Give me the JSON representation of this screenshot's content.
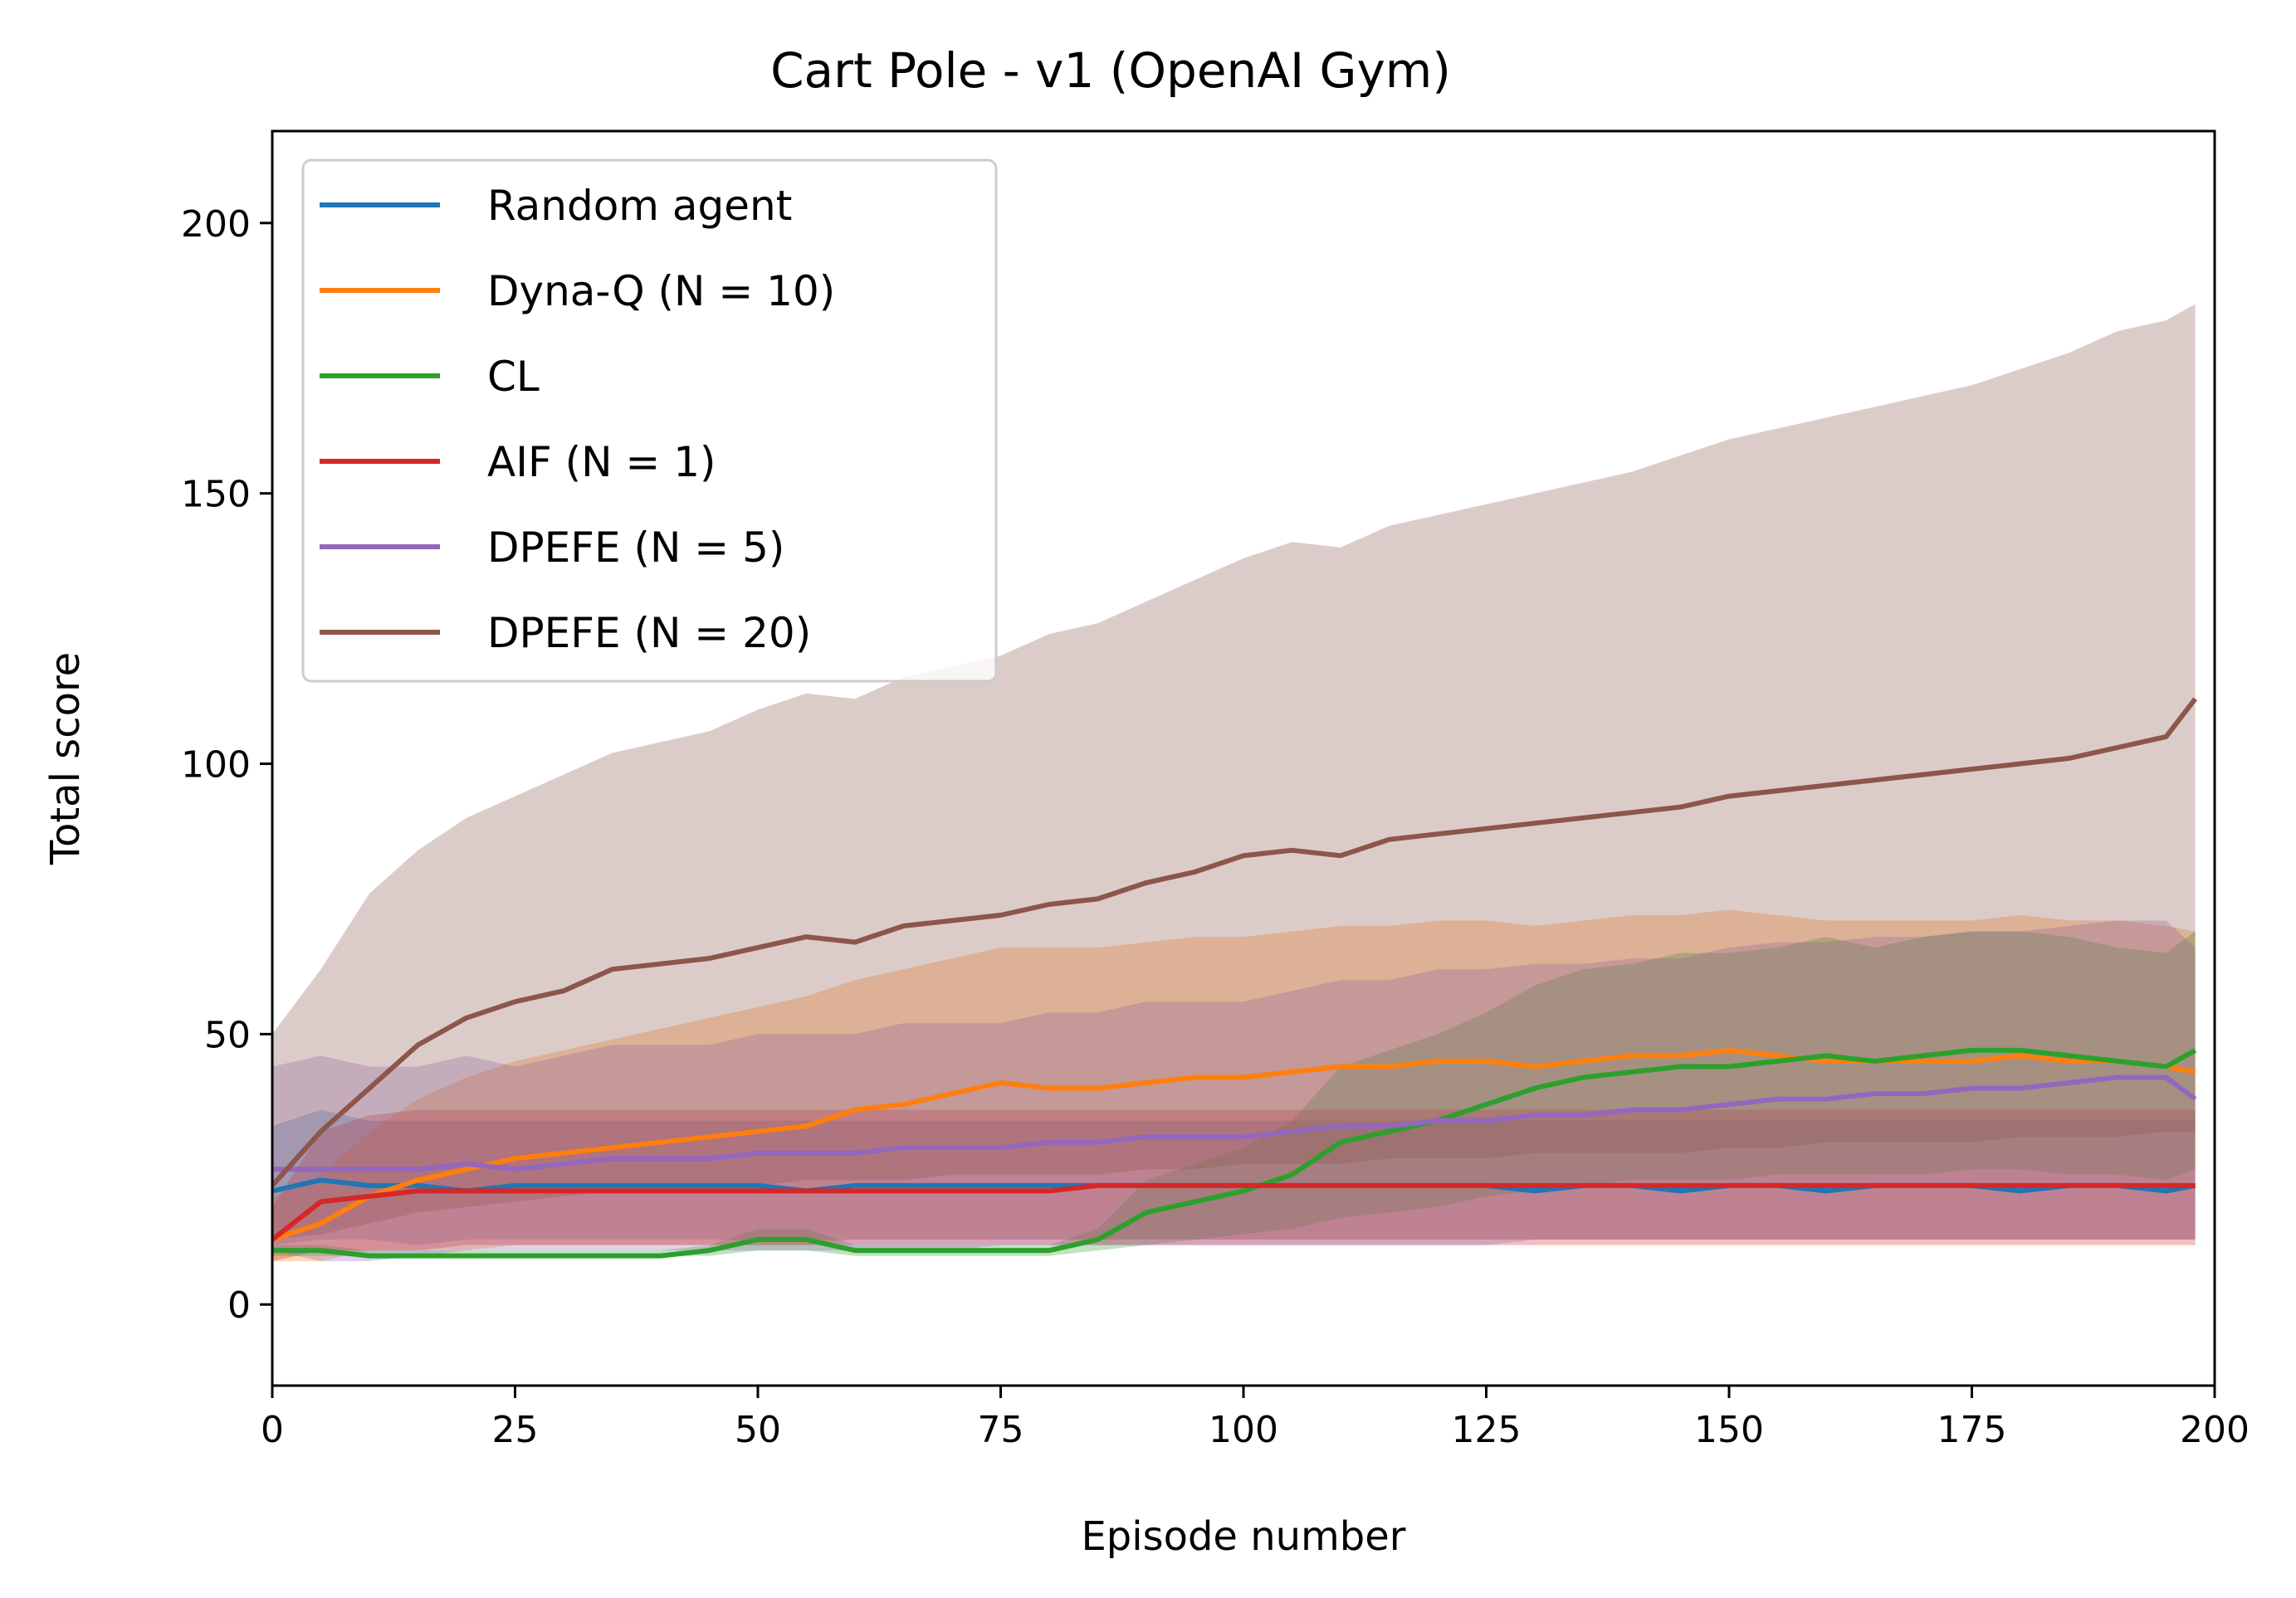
{
  "chart_data": {
    "type": "line",
    "title": "Cart Pole - v1 (OpenAI Gym)",
    "xlabel": "Episode number",
    "ylabel": "Total score",
    "xlim": [
      0,
      200
    ],
    "ylim": [
      -15,
      217
    ],
    "xticks": [
      0,
      25,
      50,
      75,
      100,
      125,
      150,
      175,
      200
    ],
    "yticks": [
      0,
      50,
      100,
      150,
      200
    ],
    "grid": false,
    "legend_position": "top-left",
    "x": [
      0,
      5,
      10,
      15,
      20,
      25,
      30,
      35,
      40,
      45,
      50,
      55,
      60,
      65,
      70,
      75,
      80,
      85,
      90,
      95,
      100,
      105,
      110,
      115,
      120,
      125,
      130,
      135,
      140,
      145,
      150,
      155,
      160,
      165,
      170,
      175,
      180,
      185,
      190,
      195,
      198
    ],
    "series": [
      {
        "name": "Random agent",
        "color": "#1f77b4",
        "values": [
          21,
          23,
          22,
          22,
          21,
          22,
          22,
          22,
          22,
          22,
          22,
          21,
          22,
          22,
          22,
          22,
          22,
          22,
          22,
          22,
          22,
          22,
          22,
          22,
          22,
          22,
          21,
          22,
          22,
          21,
          22,
          22,
          21,
          22,
          22,
          22,
          21,
          22,
          22,
          21,
          22
        ],
        "lower": [
          11,
          12,
          12,
          11,
          12,
          12,
          12,
          12,
          12,
          12,
          12,
          12,
          12,
          12,
          12,
          12,
          12,
          12,
          12,
          12,
          12,
          12,
          12,
          12,
          12,
          12,
          12,
          12,
          12,
          12,
          12,
          12,
          12,
          12,
          12,
          12,
          12,
          12,
          12,
          12,
          12
        ],
        "upper": [
          33,
          36,
          34,
          34,
          34,
          34,
          34,
          34,
          34,
          34,
          34,
          34,
          34,
          34,
          34,
          34,
          34,
          34,
          34,
          34,
          34,
          34,
          34,
          34,
          34,
          34,
          34,
          34,
          34,
          34,
          34,
          34,
          34,
          34,
          34,
          34,
          34,
          34,
          34,
          34,
          34
        ]
      },
      {
        "name": "Dyna-Q (N = 10)",
        "color": "#ff7f0e",
        "values": [
          12,
          15,
          20,
          23,
          25,
          27,
          28,
          29,
          30,
          31,
          32,
          33,
          36,
          37,
          39,
          41,
          40,
          40,
          41,
          42,
          42,
          43,
          44,
          44,
          45,
          45,
          44,
          45,
          46,
          46,
          47,
          46,
          45,
          45,
          45,
          45,
          46,
          45,
          45,
          44,
          43
        ],
        "lower": [
          8,
          8,
          10,
          10,
          10,
          11,
          11,
          11,
          11,
          11,
          11,
          11,
          12,
          12,
          12,
          12,
          12,
          12,
          12,
          12,
          12,
          12,
          12,
          12,
          12,
          12,
          12,
          12,
          12,
          12,
          12,
          12,
          12,
          12,
          12,
          12,
          12,
          12,
          12,
          12,
          12
        ],
        "upper": [
          20,
          24,
          32,
          38,
          42,
          45,
          47,
          49,
          51,
          53,
          55,
          57,
          60,
          62,
          64,
          66,
          66,
          66,
          67,
          68,
          68,
          69,
          70,
          70,
          71,
          71,
          70,
          71,
          72,
          72,
          73,
          72,
          71,
          71,
          71,
          71,
          72,
          71,
          71,
          70,
          69
        ]
      },
      {
        "name": "CL",
        "color": "#2ca02c",
        "values": [
          10,
          10,
          9,
          9,
          9,
          9,
          9,
          9,
          9,
          10,
          12,
          12,
          10,
          10,
          10,
          10,
          10,
          12,
          17,
          19,
          21,
          24,
          30,
          32,
          34,
          37,
          40,
          42,
          43,
          44,
          44,
          45,
          46,
          45,
          46,
          47,
          47,
          46,
          45,
          44,
          47
        ],
        "lower": [
          9,
          9,
          9,
          9,
          9,
          9,
          9,
          9,
          9,
          9,
          10,
          10,
          9,
          9,
          9,
          9,
          9,
          10,
          11,
          12,
          13,
          14,
          16,
          17,
          18,
          20,
          21,
          22,
          23,
          23,
          23,
          24,
          24,
          24,
          24,
          25,
          25,
          24,
          24,
          23,
          25
        ],
        "upper": [
          11,
          11,
          10,
          10,
          10,
          10,
          10,
          10,
          10,
          11,
          14,
          14,
          11,
          11,
          11,
          11,
          11,
          14,
          23,
          26,
          29,
          34,
          44,
          47,
          50,
          54,
          59,
          62,
          63,
          65,
          65,
          66,
          68,
          66,
          68,
          69,
          69,
          68,
          66,
          65,
          69
        ]
      },
      {
        "name": "AIF (N = 1)",
        "color": "#d62728",
        "values": [
          12,
          19,
          20,
          21,
          21,
          21,
          21,
          21,
          21,
          21,
          21,
          21,
          21,
          21,
          21,
          21,
          21,
          22,
          22,
          22,
          22,
          22,
          22,
          22,
          22,
          22,
          22,
          22,
          22,
          22,
          22,
          22,
          22,
          22,
          22,
          22,
          22,
          22,
          22,
          22,
          22
        ],
        "lower": [
          8,
          10,
          10,
          10,
          11,
          11,
          11,
          11,
          11,
          11,
          11,
          11,
          11,
          11,
          11,
          11,
          11,
          11,
          11,
          11,
          11,
          11,
          11,
          11,
          11,
          11,
          11,
          11,
          11,
          11,
          11,
          11,
          11,
          11,
          11,
          11,
          11,
          11,
          11,
          11,
          11
        ],
        "upper": [
          18,
          32,
          35,
          36,
          36,
          36,
          36,
          36,
          36,
          36,
          36,
          36,
          36,
          36,
          36,
          36,
          36,
          36,
          36,
          36,
          36,
          36,
          36,
          36,
          36,
          36,
          36,
          36,
          36,
          36,
          36,
          36,
          36,
          36,
          36,
          36,
          36,
          36,
          36,
          36,
          36
        ]
      },
      {
        "name": "DPEFE (N = 5)",
        "color": "#9467bd",
        "values": [
          25,
          25,
          25,
          25,
          26,
          25,
          26,
          27,
          27,
          27,
          28,
          28,
          28,
          29,
          29,
          29,
          30,
          30,
          31,
          31,
          31,
          32,
          33,
          33,
          34,
          34,
          35,
          35,
          36,
          36,
          37,
          38,
          38,
          39,
          39,
          40,
          40,
          41,
          42,
          42,
          38
        ],
        "lower": [
          10,
          8,
          8,
          9,
          10,
          10,
          10,
          10,
          10,
          10,
          10,
          10,
          10,
          10,
          10,
          11,
          11,
          11,
          11,
          11,
          11,
          11,
          11,
          11,
          11,
          11,
          12,
          12,
          12,
          12,
          12,
          12,
          12,
          12,
          12,
          12,
          12,
          12,
          12,
          12,
          12
        ],
        "upper": [
          44,
          46,
          44,
          44,
          46,
          44,
          46,
          48,
          48,
          48,
          50,
          50,
          50,
          52,
          52,
          52,
          54,
          54,
          56,
          56,
          56,
          58,
          60,
          60,
          62,
          62,
          63,
          63,
          64,
          64,
          66,
          67,
          67,
          68,
          68,
          69,
          69,
          70,
          71,
          71,
          66
        ]
      },
      {
        "name": "DPEFE (N = 20)",
        "color": "#8c564b",
        "values": [
          22,
          32,
          40,
          48,
          53,
          56,
          58,
          62,
          63,
          64,
          66,
          68,
          67,
          70,
          71,
          72,
          74,
          75,
          78,
          80,
          83,
          84,
          83,
          86,
          87,
          88,
          89,
          90,
          91,
          92,
          94,
          95,
          96,
          97,
          98,
          99,
          100,
          101,
          103,
          105,
          112
        ],
        "lower": [
          12,
          13,
          15,
          17,
          18,
          19,
          20,
          21,
          22,
          22,
          22,
          23,
          23,
          23,
          24,
          24,
          24,
          24,
          25,
          25,
          26,
          26,
          26,
          27,
          27,
          27,
          28,
          28,
          28,
          28,
          29,
          29,
          30,
          30,
          30,
          30,
          31,
          31,
          31,
          32,
          32
        ],
        "upper": [
          50,
          62,
          76,
          84,
          90,
          94,
          98,
          102,
          104,
          106,
          110,
          113,
          112,
          116,
          118,
          120,
          124,
          126,
          130,
          134,
          138,
          141,
          140,
          144,
          146,
          148,
          150,
          152,
          154,
          157,
          160,
          162,
          164,
          166,
          168,
          170,
          173,
          176,
          180,
          182,
          185
        ]
      }
    ]
  }
}
